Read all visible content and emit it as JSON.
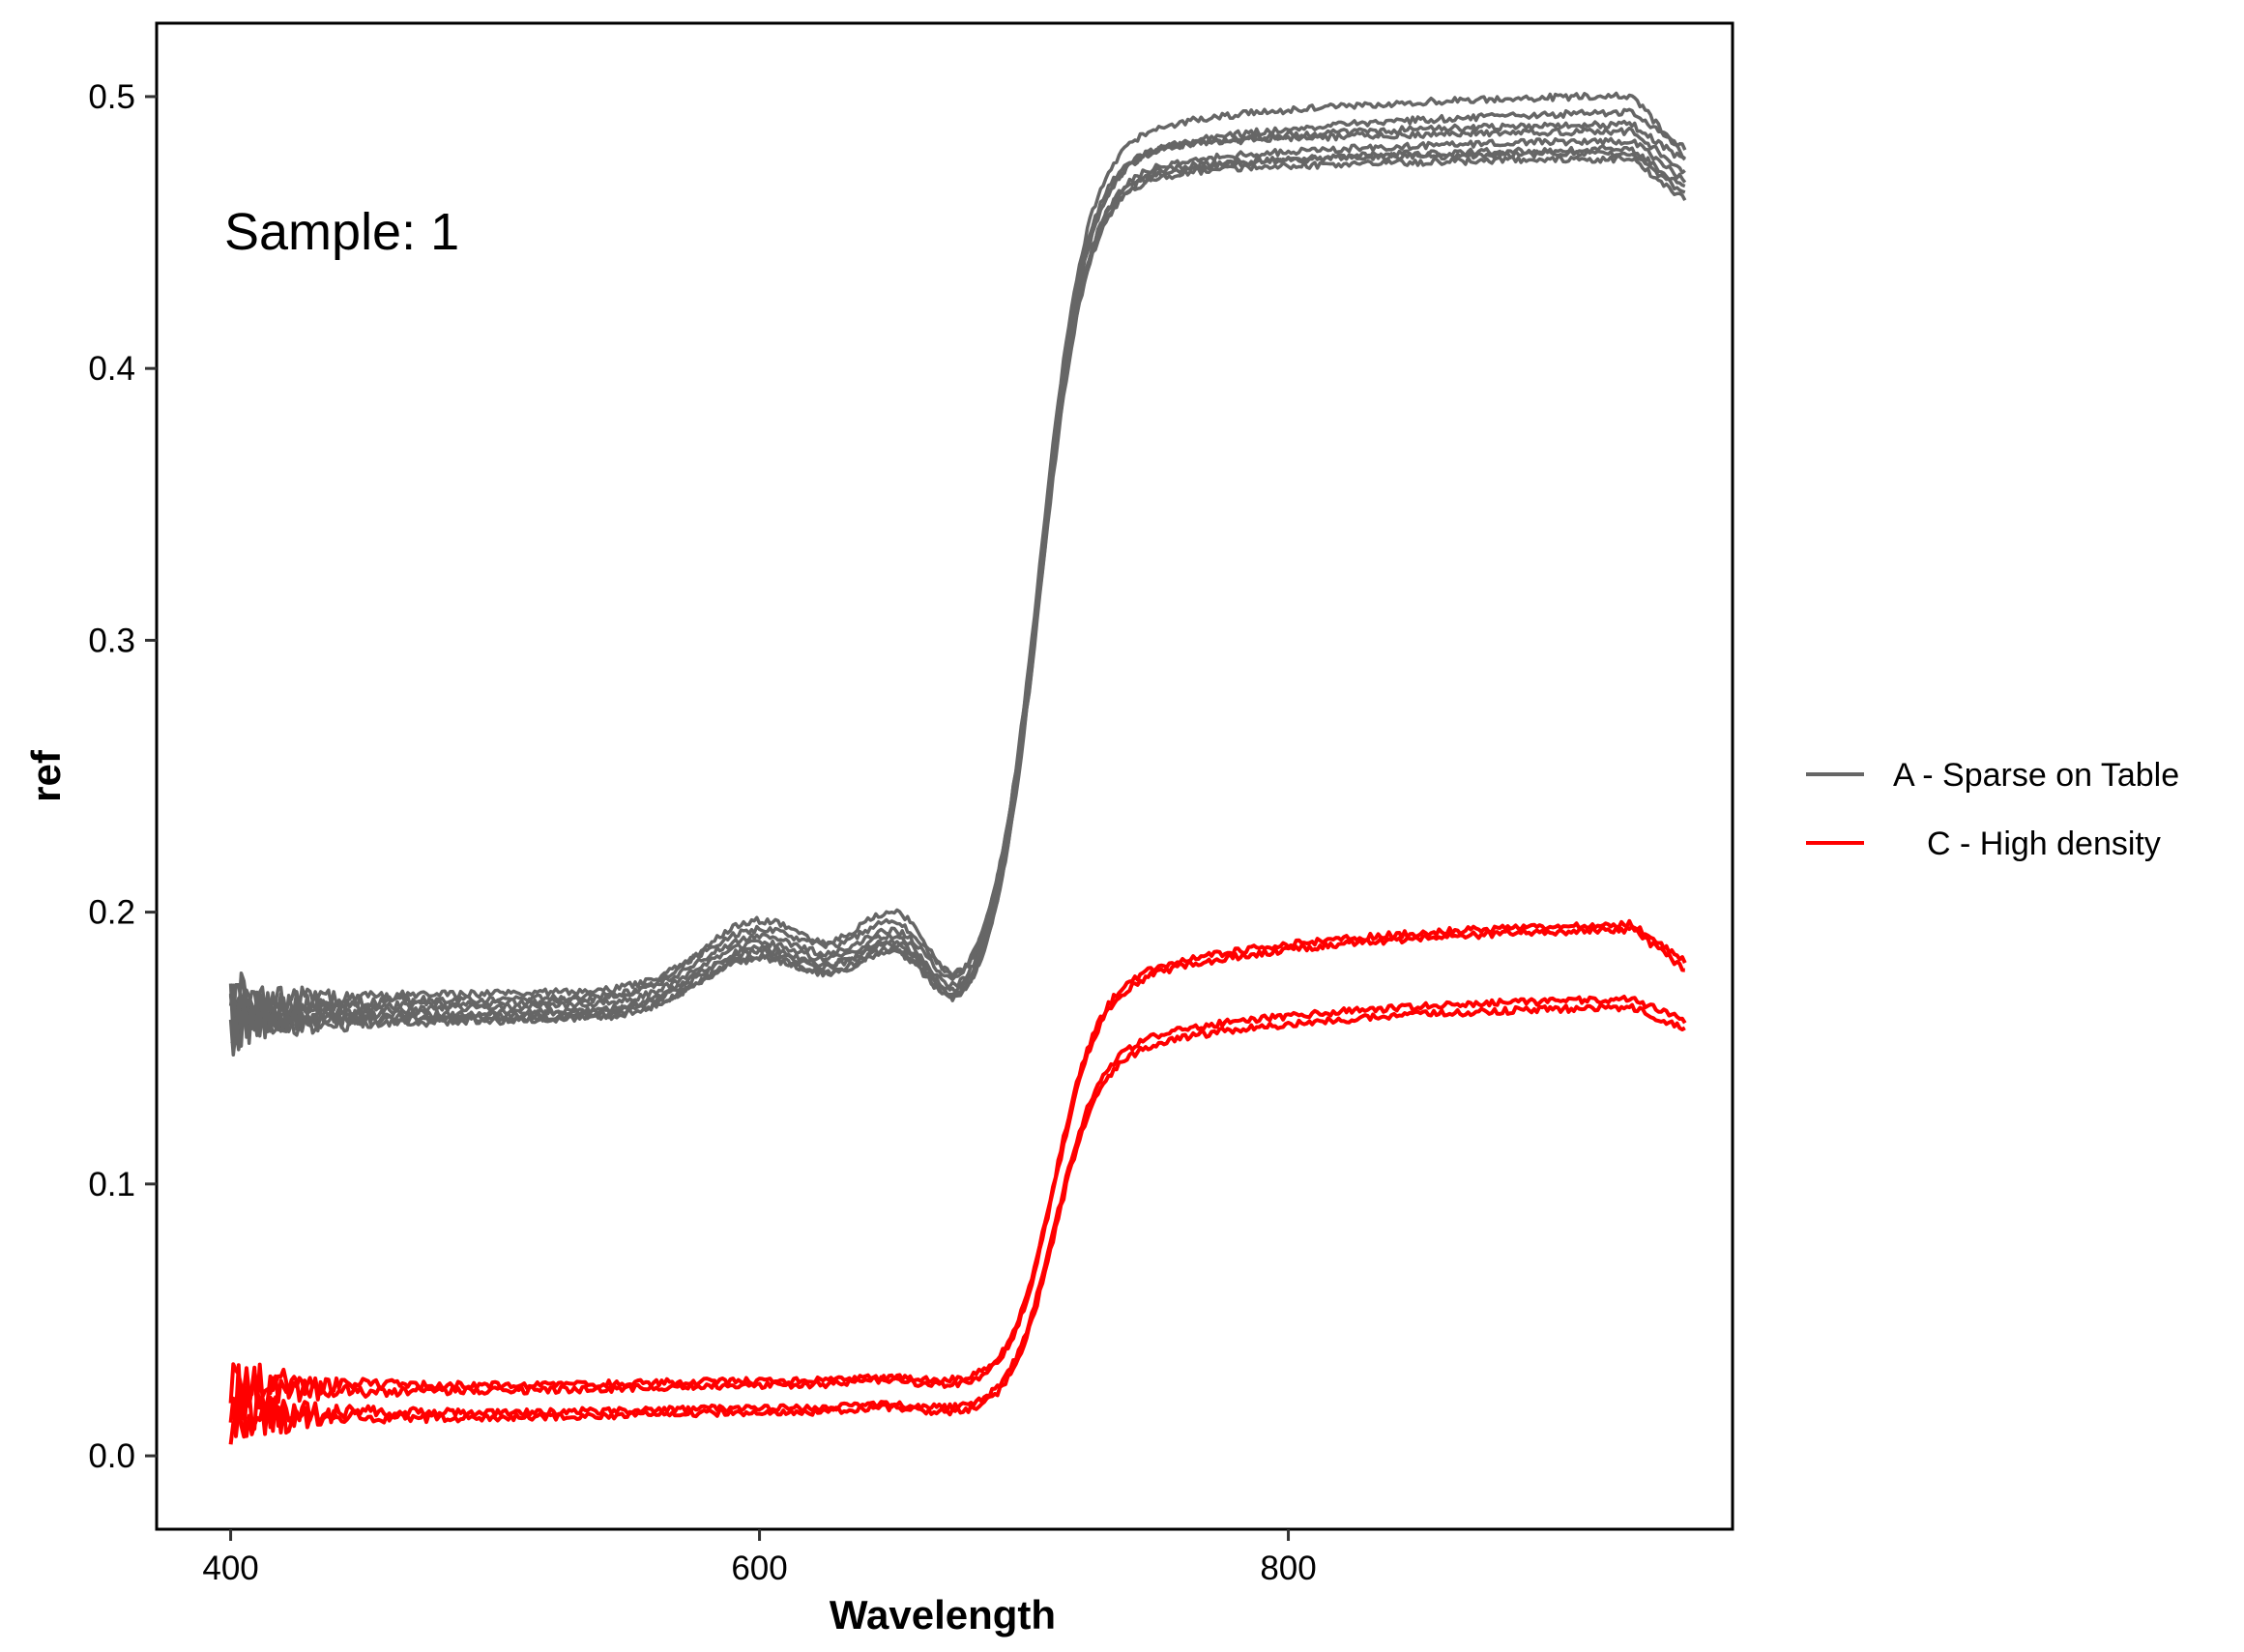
{
  "chart_data": {
    "type": "line",
    "xlabel": "Wavelength",
    "ylabel": "ref",
    "annotation": "Sample: 1",
    "xlim": [
      372,
      968
    ],
    "ylim": [
      -0.027,
      0.527
    ],
    "x_ticks": [
      400,
      600,
      800
    ],
    "y_ticks": [
      0.0,
      0.1,
      0.2,
      0.3,
      0.4,
      0.5
    ],
    "y_tick_labels": [
      "0.0",
      "0.1",
      "0.2",
      "0.3",
      "0.4",
      "0.5"
    ],
    "grid": false,
    "legend_position": "right",
    "legend": [
      {
        "label": "A -  Sparse on Table",
        "color": "#666666"
      },
      {
        "label": "C - High density",
        "color": "#ff0000"
      }
    ],
    "series": [
      {
        "group": "A -  Sparse on Table",
        "color": "#666666",
        "start": 0.163,
        "green_peak": 0.191,
        "nir_start": 0.472,
        "nir_peak": 0.496,
        "end": 0.481
      },
      {
        "group": "A -  Sparse on Table",
        "color": "#666666",
        "start": 0.16,
        "green_peak": 0.188,
        "nir_start": 0.475,
        "nir_peak": 0.491,
        "end": 0.476
      },
      {
        "group": "A -  Sparse on Table",
        "color": "#666666",
        "start": 0.166,
        "green_peak": 0.193,
        "nir_start": 0.478,
        "nir_peak": 0.488,
        "end": 0.472
      },
      {
        "group": "A -  Sparse on Table",
        "color": "#666666",
        "start": 0.158,
        "green_peak": 0.186,
        "nir_start": 0.469,
        "nir_peak": 0.485,
        "end": 0.469
      },
      {
        "group": "A -  Sparse on Table",
        "color": "#666666",
        "start": 0.168,
        "green_peak": 0.196,
        "nir_start": 0.466,
        "nir_peak": 0.482,
        "end": 0.466
      },
      {
        "group": "A -  Sparse on Table",
        "color": "#666666",
        "start": 0.161,
        "green_peak": 0.189,
        "nir_start": 0.47,
        "nir_peak": 0.48,
        "end": 0.464
      },
      {
        "group": "A -  Sparse on Table",
        "color": "#666666",
        "start": 0.164,
        "green_peak": 0.2,
        "nir_start": 0.481,
        "nir_peak": 0.502,
        "end": 0.478
      },
      {
        "group": "A -  Sparse on Table",
        "color": "#666666",
        "start": 0.159,
        "green_peak": 0.185,
        "nir_start": 0.467,
        "nir_peak": 0.478,
        "end": 0.462
      },
      {
        "group": "C - High density",
        "color": "#ff0000",
        "start": 0.026,
        "green_peak": 0.029,
        "nir_start": 0.168,
        "nir_peak": 0.198,
        "end": 0.182
      },
      {
        "group": "C - High density",
        "color": "#ff0000",
        "start": 0.024,
        "green_peak": 0.028,
        "nir_start": 0.166,
        "nir_peak": 0.196,
        "end": 0.179
      },
      {
        "group": "C - High density",
        "color": "#ff0000",
        "start": 0.016,
        "green_peak": 0.019,
        "nir_start": 0.145,
        "nir_peak": 0.17,
        "end": 0.16
      },
      {
        "group": "C - High density",
        "color": "#ff0000",
        "start": 0.014,
        "green_peak": 0.018,
        "nir_start": 0.142,
        "nir_peak": 0.167,
        "end": 0.157
      }
    ]
  }
}
